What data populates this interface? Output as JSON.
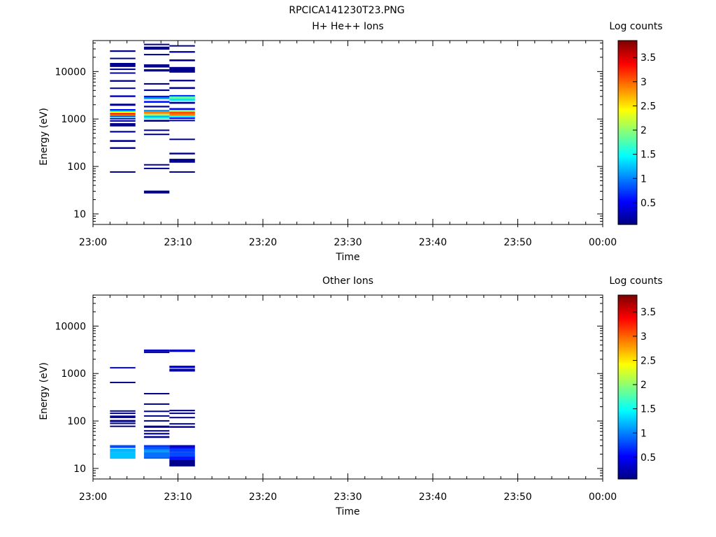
{
  "figure_title": "RPCICA141230T23.PNG",
  "chart_data": [
    {
      "type": "heatmap",
      "title": "H+ He++ Ions",
      "xlabel": "Time",
      "ylabel": "Energy (eV)",
      "x_range": [
        "23:00",
        "00:00"
      ],
      "x_ticks": [
        "23:00",
        "23:10",
        "23:20",
        "23:30",
        "23:40",
        "23:50",
        "00:00"
      ],
      "y_scale": "log",
      "y_range": [
        6,
        45000
      ],
      "y_ticks": [
        "10",
        "100",
        "1000",
        "10000"
      ],
      "colorbar": {
        "label": "Log counts",
        "range": [
          0.05,
          3.85
        ],
        "ticks": [
          "0.5",
          "1",
          "1.5",
          "2",
          "2.5",
          "3",
          "3.5"
        ],
        "colormap": "jet"
      },
      "time_bins": [
        {
          "start": "23:02",
          "end": "23:05",
          "cells": [
            {
              "e_lo": 74,
              "e_hi": 79,
              "v": 0.1
            },
            {
              "e_lo": 235,
              "e_hi": 255,
              "v": 0.1
            },
            {
              "e_lo": 330,
              "e_hi": 360,
              "v": 0.1
            },
            {
              "e_lo": 520,
              "e_hi": 560,
              "v": 0.1
            },
            {
              "e_lo": 700,
              "e_hi": 820,
              "v": 0.1
            },
            {
              "e_lo": 880,
              "e_hi": 940,
              "v": 0.2
            },
            {
              "e_lo": 1000,
              "e_hi": 1050,
              "v": 0.5
            },
            {
              "e_lo": 1080,
              "e_hi": 1130,
              "v": 1.7
            },
            {
              "e_lo": 1130,
              "e_hi": 1190,
              "v": 0.8
            },
            {
              "e_lo": 1190,
              "e_hi": 1260,
              "v": 2.8
            },
            {
              "e_lo": 1260,
              "e_hi": 1340,
              "v": 3.4
            },
            {
              "e_lo": 1340,
              "e_hi": 1430,
              "v": 2.4
            },
            {
              "e_lo": 1430,
              "e_hi": 1530,
              "v": 1.3
            },
            {
              "e_lo": 1530,
              "e_hi": 1620,
              "v": 0.6
            },
            {
              "e_lo": 1900,
              "e_hi": 2100,
              "v": 0.1
            },
            {
              "e_lo": 2900,
              "e_hi": 3150,
              "v": 0.3
            },
            {
              "e_lo": 4300,
              "e_hi": 4600,
              "v": 0.1
            },
            {
              "e_lo": 6100,
              "e_hi": 6600,
              "v": 0.1
            },
            {
              "e_lo": 9000,
              "e_hi": 9600,
              "v": 0.1
            },
            {
              "e_lo": 10800,
              "e_hi": 11600,
              "v": 0.1
            },
            {
              "e_lo": 12500,
              "e_hi": 15200,
              "v": 0.1
            },
            {
              "e_lo": 18300,
              "e_hi": 19500,
              "v": 0.1
            },
            {
              "e_lo": 26000,
              "e_hi": 28000,
              "v": 0.1
            }
          ]
        },
        {
          "start": "23:06",
          "end": "23:09",
          "cells": [
            {
              "e_lo": 27,
              "e_hi": 31,
              "v": 0.1
            },
            {
              "e_lo": 88,
              "e_hi": 94,
              "v": 0.1
            },
            {
              "e_lo": 105,
              "e_hi": 112,
              "v": 0.1
            },
            {
              "e_lo": 460,
              "e_hi": 490,
              "v": 0.1
            },
            {
              "e_lo": 560,
              "e_hi": 600,
              "v": 0.1
            },
            {
              "e_lo": 880,
              "e_hi": 960,
              "v": 0.1
            },
            {
              "e_lo": 1000,
              "e_hi": 1080,
              "v": 1.6
            },
            {
              "e_lo": 1080,
              "e_hi": 1180,
              "v": 1.2
            },
            {
              "e_lo": 1180,
              "e_hi": 1290,
              "v": 2.0
            },
            {
              "e_lo": 1290,
              "e_hi": 1430,
              "v": 2.9
            },
            {
              "e_lo": 1430,
              "e_hi": 1560,
              "v": 1.1
            },
            {
              "e_lo": 1760,
              "e_hi": 1900,
              "v": 0.1
            },
            {
              "e_lo": 2200,
              "e_hi": 2400,
              "v": 0.6
            },
            {
              "e_lo": 2600,
              "e_hi": 2850,
              "v": 1.2
            },
            {
              "e_lo": 2850,
              "e_hi": 3100,
              "v": 0.6
            },
            {
              "e_lo": 3900,
              "e_hi": 4200,
              "v": 0.1
            },
            {
              "e_lo": 5300,
              "e_hi": 5700,
              "v": 0.1
            },
            {
              "e_lo": 10000,
              "e_hi": 11200,
              "v": 0.1
            },
            {
              "e_lo": 12200,
              "e_hi": 14200,
              "v": 0.1
            },
            {
              "e_lo": 22000,
              "e_hi": 23500,
              "v": 0.1
            },
            {
              "e_lo": 29000,
              "e_hi": 33500,
              "v": 0.1
            },
            {
              "e_lo": 36500,
              "e_hi": 38500,
              "v": 0.1
            }
          ]
        },
        {
          "start": "23:09",
          "end": "23:12",
          "cells": [
            {
              "e_lo": 74,
              "e_hi": 79,
              "v": 0.1
            },
            {
              "e_lo": 120,
              "e_hi": 145,
              "v": 0.1
            },
            {
              "e_lo": 180,
              "e_hi": 195,
              "v": 0.1
            },
            {
              "e_lo": 360,
              "e_hi": 385,
              "v": 0.1
            },
            {
              "e_lo": 900,
              "e_hi": 960,
              "v": 0.1
            },
            {
              "e_lo": 1000,
              "e_hi": 1080,
              "v": 0.6
            },
            {
              "e_lo": 1080,
              "e_hi": 1180,
              "v": 1.5
            },
            {
              "e_lo": 1180,
              "e_hi": 1300,
              "v": 2.9
            },
            {
              "e_lo": 1300,
              "e_hi": 1430,
              "v": 3.1
            },
            {
              "e_lo": 1430,
              "e_hi": 1560,
              "v": 2.0
            },
            {
              "e_lo": 1560,
              "e_hi": 1700,
              "v": 0.5
            },
            {
              "e_lo": 2100,
              "e_hi": 2300,
              "v": 0.1
            },
            {
              "e_lo": 2400,
              "e_hi": 2700,
              "v": 1.4
            },
            {
              "e_lo": 2700,
              "e_hi": 3000,
              "v": 1.8
            },
            {
              "e_lo": 3000,
              "e_hi": 3200,
              "v": 0.7
            },
            {
              "e_lo": 4300,
              "e_hi": 4700,
              "v": 0.1
            },
            {
              "e_lo": 6200,
              "e_hi": 6700,
              "v": 0.1
            },
            {
              "e_lo": 9500,
              "e_hi": 12500,
              "v": 0.1
            },
            {
              "e_lo": 16500,
              "e_hi": 18000,
              "v": 0.1
            },
            {
              "e_lo": 25000,
              "e_hi": 27000,
              "v": 0.1
            },
            {
              "e_lo": 34000,
              "e_hi": 36000,
              "v": 0.1
            }
          ]
        }
      ]
    },
    {
      "type": "heatmap",
      "title": "Other Ions",
      "xlabel": "Time",
      "ylabel": "Energy (eV)",
      "x_range": [
        "23:00",
        "00:00"
      ],
      "x_ticks": [
        "23:00",
        "23:10",
        "23:20",
        "23:30",
        "23:40",
        "23:50",
        "00:00"
      ],
      "y_scale": "log",
      "y_range": [
        6,
        45000
      ],
      "y_ticks": [
        "10",
        "100",
        "1000",
        "10000"
      ],
      "colorbar": {
        "label": "Log counts",
        "range": [
          0.05,
          3.85
        ],
        "ticks": [
          "0.5",
          "1",
          "1.5",
          "2",
          "2.5",
          "3",
          "3.5"
        ],
        "colormap": "jet"
      },
      "time_bins": [
        {
          "start": "23:02",
          "end": "23:05",
          "cells": [
            {
              "e_lo": 16,
              "e_hi": 22,
              "v": 1.25
            },
            {
              "e_lo": 22,
              "e_hi": 26,
              "v": 1.2
            },
            {
              "e_lo": 27,
              "e_hi": 31,
              "v": 0.8
            },
            {
              "e_lo": 76,
              "e_hi": 80,
              "v": 0.1
            },
            {
              "e_lo": 86,
              "e_hi": 92,
              "v": 0.1
            },
            {
              "e_lo": 95,
              "e_hi": 105,
              "v": 0.1
            },
            {
              "e_lo": 115,
              "e_hi": 130,
              "v": 0.1
            },
            {
              "e_lo": 140,
              "e_hi": 150,
              "v": 0.1
            },
            {
              "e_lo": 160,
              "e_hi": 168,
              "v": 0.1
            },
            {
              "e_lo": 630,
              "e_hi": 670,
              "v": 0.1
            },
            {
              "e_lo": 1300,
              "e_hi": 1370,
              "v": 0.5
            }
          ]
        },
        {
          "start": "23:06",
          "end": "23:09",
          "cells": [
            {
              "e_lo": 16,
              "e_hi": 18,
              "v": 0.9
            },
            {
              "e_lo": 18,
              "e_hi": 22,
              "v": 0.95
            },
            {
              "e_lo": 22,
              "e_hi": 25,
              "v": 1.1
            },
            {
              "e_lo": 25,
              "e_hi": 28,
              "v": 0.85
            },
            {
              "e_lo": 28,
              "e_hi": 31,
              "v": 0.7
            },
            {
              "e_lo": 44,
              "e_hi": 48,
              "v": 0.1
            },
            {
              "e_lo": 52,
              "e_hi": 56,
              "v": 0.1
            },
            {
              "e_lo": 60,
              "e_hi": 64,
              "v": 0.1
            },
            {
              "e_lo": 72,
              "e_hi": 80,
              "v": 0.1
            },
            {
              "e_lo": 98,
              "e_hi": 104,
              "v": 0.1
            },
            {
              "e_lo": 125,
              "e_hi": 132,
              "v": 0.1
            },
            {
              "e_lo": 155,
              "e_hi": 165,
              "v": 0.1
            },
            {
              "e_lo": 225,
              "e_hi": 235,
              "v": 0.1
            },
            {
              "e_lo": 370,
              "e_hi": 390,
              "v": 0.1
            },
            {
              "e_lo": 2700,
              "e_hi": 2900,
              "v": 0.1
            },
            {
              "e_lo": 2900,
              "e_hi": 3200,
              "v": 0.3
            }
          ]
        },
        {
          "start": "23:09",
          "end": "23:12",
          "cells": [
            {
              "e_lo": 11,
              "e_hi": 15,
              "v": 0.1
            },
            {
              "e_lo": 15,
              "e_hi": 18,
              "v": 0.6
            },
            {
              "e_lo": 18,
              "e_hi": 22,
              "v": 0.8
            },
            {
              "e_lo": 22,
              "e_hi": 26,
              "v": 0.75
            },
            {
              "e_lo": 26,
              "e_hi": 28,
              "v": 0.4
            },
            {
              "e_lo": 28,
              "e_hi": 31,
              "v": 0.3
            },
            {
              "e_lo": 72,
              "e_hi": 78,
              "v": 0.1
            },
            {
              "e_lo": 85,
              "e_hi": 90,
              "v": 0.1
            },
            {
              "e_lo": 115,
              "e_hi": 122,
              "v": 0.1
            },
            {
              "e_lo": 140,
              "e_hi": 150,
              "v": 0.1
            },
            {
              "e_lo": 160,
              "e_hi": 172,
              "v": 0.1
            },
            {
              "e_lo": 1100,
              "e_hi": 1260,
              "v": 0.15
            },
            {
              "e_lo": 1300,
              "e_hi": 1460,
              "v": 0.45
            },
            {
              "e_lo": 2850,
              "e_hi": 3200,
              "v": 0.3
            }
          ]
        }
      ]
    }
  ]
}
